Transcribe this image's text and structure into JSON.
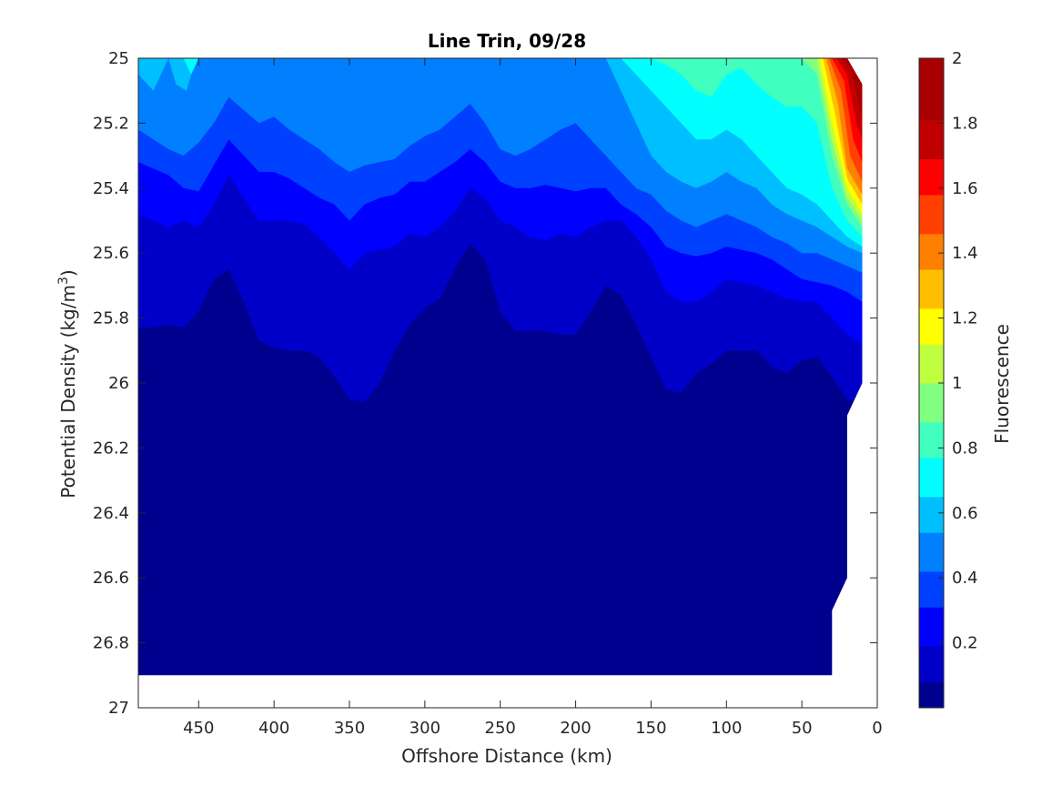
{
  "chart_data": {
    "type": "filled-contour",
    "title": "Line Trin, 09/28",
    "xlabel": "Offshore Distance (km)",
    "ylabel_main": "Potential Density (kg/m",
    "ylabel_sup": "3",
    "ylabel_close": ")",
    "colorbar_label": "Fluorescence",
    "x_reversed": true,
    "y_reversed": true,
    "xlim": [
      0,
      490
    ],
    "ylim": [
      25,
      27
    ],
    "xticks": [
      450,
      400,
      350,
      300,
      250,
      200,
      150,
      100,
      50,
      0
    ],
    "yticks": [
      25,
      25.2,
      25.4,
      25.6,
      25.8,
      26,
      26.2,
      26.4,
      26.6,
      26.8,
      27
    ],
    "colorbar_range": [
      0,
      2
    ],
    "colorbar_ticks": [
      0.2,
      0.4,
      0.6,
      0.8,
      1,
      1.2,
      1.4,
      1.6,
      1.8,
      2
    ],
    "colorbar_tick_labels": [
      "0.2",
      "0.4",
      "0.6",
      "0.8",
      "1",
      "1.2",
      "1.4",
      "1.6",
      "1.8",
      "2"
    ],
    "colormap": [
      "#00008f",
      "#0000c8",
      "#0000ff",
      "#0040ff",
      "#0080ff",
      "#00bfff",
      "#00ffff",
      "#40ffbf",
      "#80ff80",
      "#bfff40",
      "#ffff00",
      "#ffbf00",
      "#ff8000",
      "#ff4000",
      "#ff0000",
      "#c00000",
      "#a80000"
    ],
    "colorbar_levels": [
      0,
      0.08,
      0.19,
      0.31,
      0.42,
      0.54,
      0.65,
      0.77,
      0.88,
      1.0,
      1.12,
      1.23,
      1.35,
      1.46,
      1.58,
      1.69,
      1.81,
      2.0
    ],
    "layers": [
      {
        "level": 0.08,
        "x": [
          490,
          480,
          470,
          460,
          450,
          440,
          430,
          420,
          410,
          400,
          390,
          380,
          370,
          360,
          350,
          340,
          330,
          320,
          310,
          300,
          290,
          280,
          270,
          260,
          250,
          240,
          230,
          220,
          210,
          200,
          190,
          180,
          170,
          160,
          150,
          140,
          130,
          120,
          110,
          100,
          90,
          80,
          70,
          60,
          50,
          40,
          30,
          20,
          10
        ],
        "y": [
          25.83,
          25.83,
          25.82,
          25.83,
          25.78,
          25.68,
          25.65,
          25.75,
          25.87,
          25.89,
          25.9,
          25.9,
          25.92,
          25.98,
          26.05,
          26.06,
          26.0,
          25.9,
          25.82,
          25.77,
          25.74,
          25.65,
          25.57,
          25.62,
          25.78,
          25.84,
          25.84,
          25.84,
          25.85,
          25.85,
          25.78,
          25.7,
          25.73,
          25.82,
          25.92,
          26.02,
          26.03,
          25.97,
          25.94,
          25.9,
          25.9,
          25.9,
          25.95,
          25.97,
          25.93,
          25.92,
          25.98,
          26.05,
          26.05
        ]
      },
      {
        "level": 0.19,
        "x": [
          490,
          480,
          470,
          460,
          450,
          440,
          430,
          420,
          410,
          400,
          390,
          380,
          370,
          360,
          350,
          340,
          330,
          320,
          310,
          300,
          290,
          280,
          270,
          260,
          250,
          240,
          230,
          220,
          210,
          200,
          190,
          180,
          170,
          160,
          150,
          140,
          130,
          120,
          110,
          100,
          90,
          80,
          70,
          60,
          50,
          40,
          30,
          20,
          10
        ],
        "y": [
          25.48,
          25.5,
          25.52,
          25.5,
          25.52,
          25.45,
          25.36,
          25.43,
          25.5,
          25.5,
          25.5,
          25.51,
          25.55,
          25.6,
          25.65,
          25.6,
          25.59,
          25.58,
          25.54,
          25.55,
          25.52,
          25.47,
          25.4,
          25.43,
          25.5,
          25.52,
          25.55,
          25.56,
          25.54,
          25.55,
          25.52,
          25.5,
          25.5,
          25.55,
          25.62,
          25.72,
          25.75,
          25.75,
          25.72,
          25.68,
          25.69,
          25.7,
          25.72,
          25.74,
          25.75,
          25.75,
          25.8,
          25.85,
          25.88
        ]
      },
      {
        "level": 0.31,
        "x": [
          490,
          480,
          470,
          460,
          450,
          440,
          430,
          420,
          410,
          400,
          390,
          380,
          370,
          360,
          350,
          340,
          330,
          320,
          310,
          300,
          290,
          280,
          270,
          260,
          250,
          240,
          230,
          220,
          210,
          200,
          190,
          180,
          170,
          160,
          150,
          140,
          130,
          120,
          110,
          100,
          90,
          80,
          70,
          60,
          50,
          40,
          30,
          20,
          10
        ],
        "y": [
          25.32,
          25.34,
          25.36,
          25.4,
          25.41,
          25.33,
          25.25,
          25.3,
          25.35,
          25.35,
          25.37,
          25.4,
          25.43,
          25.45,
          25.5,
          25.45,
          25.43,
          25.42,
          25.38,
          25.38,
          25.35,
          25.32,
          25.28,
          25.32,
          25.38,
          25.4,
          25.4,
          25.39,
          25.4,
          25.41,
          25.4,
          25.4,
          25.45,
          25.48,
          25.52,
          25.58,
          25.6,
          25.61,
          25.6,
          25.58,
          25.59,
          25.6,
          25.62,
          25.65,
          25.68,
          25.69,
          25.7,
          25.72,
          25.75
        ]
      },
      {
        "level": 0.42,
        "x": [
          490,
          480,
          470,
          460,
          450,
          440,
          430,
          420,
          410,
          400,
          390,
          380,
          370,
          360,
          350,
          340,
          330,
          320,
          310,
          300,
          290,
          280,
          270,
          260,
          250,
          240,
          230,
          220,
          210,
          200,
          190,
          180,
          170,
          160,
          150,
          140,
          130,
          120,
          110,
          100,
          90,
          80,
          70,
          60,
          50,
          40,
          30,
          20,
          10
        ],
        "y": [
          25.22,
          25.25,
          25.28,
          25.3,
          25.26,
          25.2,
          25.12,
          25.16,
          25.2,
          25.18,
          25.22,
          25.25,
          25.28,
          25.32,
          25.35,
          25.33,
          25.32,
          25.31,
          25.27,
          25.24,
          25.22,
          25.18,
          25.14,
          25.2,
          25.28,
          25.3,
          25.28,
          25.25,
          25.22,
          25.2,
          25.25,
          25.3,
          25.35,
          25.4,
          25.42,
          25.47,
          25.5,
          25.52,
          25.5,
          25.48,
          25.5,
          25.52,
          25.55,
          25.57,
          25.6,
          25.6,
          25.62,
          25.64,
          25.66
        ]
      },
      {
        "level": 0.54,
        "x": [
          490,
          480,
          470,
          460,
          450,
          440,
          430,
          420,
          410,
          400,
          390,
          380,
          370,
          360,
          350,
          340,
          330,
          320,
          310,
          300,
          290,
          280,
          270,
          260,
          250,
          240,
          230,
          220,
          210,
          200,
          190,
          180,
          170,
          160,
          150,
          140,
          130,
          120,
          110,
          100,
          90,
          80,
          70,
          60,
          50,
          40,
          30,
          20,
          10
        ],
        "y": [
          25.05,
          25.1,
          25.0,
          25.0,
          25.0,
          25.0,
          25.0,
          25.0,
          25.0,
          25.0,
          25.0,
          25.0,
          25.0,
          25.0,
          25.0,
          25.0,
          25.0,
          25.0,
          25.0,
          25.0,
          25.0,
          25.0,
          25.0,
          25.0,
          25.0,
          25.0,
          25.0,
          25.0,
          25.0,
          25.0,
          25.0,
          25.0,
          25.1,
          25.2,
          25.3,
          25.35,
          25.38,
          25.4,
          25.38,
          25.35,
          25.38,
          25.4,
          25.45,
          25.48,
          25.5,
          25.52,
          25.55,
          25.58,
          25.6
        ]
      },
      {
        "level": 0.65,
        "x": [
          490,
          480,
          470,
          460,
          450,
          440,
          430,
          420,
          410,
          400,
          390,
          380,
          370,
          360,
          350,
          340,
          330,
          320,
          310,
          300,
          290,
          280,
          270,
          260,
          250,
          240,
          230,
          220,
          210,
          200,
          190,
          180,
          170,
          160,
          150,
          140,
          130,
          120,
          110,
          100,
          90,
          80,
          70,
          60,
          50,
          40,
          30,
          20,
          10
        ],
        "y": [
          25,
          25,
          25,
          25,
          25,
          25,
          25,
          25,
          25,
          25,
          25,
          25,
          25,
          25,
          25,
          25,
          25,
          25,
          25,
          25,
          25,
          25,
          25,
          25,
          25,
          25,
          25,
          25,
          25,
          25,
          25,
          25,
          25,
          25.05,
          25.1,
          25.15,
          25.2,
          25.25,
          25.25,
          25.22,
          25.25,
          25.3,
          25.35,
          25.4,
          25.42,
          25.45,
          25.5,
          25.55,
          25.58
        ]
      },
      {
        "level": 0.77,
        "x": [
          490,
          480,
          470,
          460,
          450,
          440,
          430,
          420,
          410,
          400,
          390,
          380,
          370,
          360,
          350,
          340,
          330,
          320,
          310,
          300,
          290,
          280,
          270,
          260,
          250,
          240,
          230,
          220,
          210,
          200,
          190,
          180,
          170,
          160,
          150,
          140,
          130,
          120,
          110,
          100,
          90,
          80,
          70,
          60,
          50,
          40,
          30,
          20,
          10
        ],
        "y": [
          25,
          25,
          25,
          25,
          25,
          25,
          25,
          25,
          25,
          25,
          25,
          25,
          25,
          25,
          25,
          25,
          25,
          25,
          25,
          25,
          25,
          25,
          25,
          25,
          25,
          25,
          25,
          25,
          25,
          25,
          25,
          25,
          25,
          25,
          25,
          25.02,
          25.05,
          25.1,
          25.12,
          25.05,
          25.03,
          25.08,
          25.12,
          25.15,
          25.15,
          25.2,
          25.4,
          25.5,
          25.55
        ]
      },
      {
        "level": 0.88,
        "x": [
          490,
          480,
          470,
          460,
          450,
          440,
          430,
          420,
          410,
          400,
          390,
          380,
          370,
          360,
          350,
          340,
          330,
          320,
          310,
          300,
          290,
          280,
          270,
          260,
          250,
          240,
          230,
          220,
          210,
          200,
          190,
          180,
          170,
          160,
          150,
          140,
          130,
          120,
          110,
          100,
          90,
          80,
          70,
          60,
          50,
          40,
          30,
          20,
          10
        ],
        "y": [
          25,
          25,
          25,
          25,
          25,
          25,
          25,
          25,
          25,
          25,
          25,
          25,
          25,
          25,
          25,
          25,
          25,
          25,
          25,
          25,
          25,
          25,
          25,
          25,
          25,
          25,
          25,
          25,
          25,
          25,
          25,
          25,
          25,
          25,
          25,
          25,
          25,
          25,
          25,
          25,
          25,
          25,
          25,
          25,
          25,
          25.05,
          25.3,
          25.45,
          25.52
        ]
      },
      {
        "level": 1.0,
        "x": [
          40,
          30,
          20,
          10
        ],
        "y": [
          25,
          25.25,
          25.43,
          25.5
        ]
      },
      {
        "level": 1.12,
        "x": [
          38,
          30,
          20,
          10
        ],
        "y": [
          25,
          25.2,
          25.4,
          25.48
        ]
      },
      {
        "level": 1.23,
        "x": [
          36,
          28,
          20,
          10
        ],
        "y": [
          25,
          25.17,
          25.37,
          25.45
        ]
      },
      {
        "level": 1.35,
        "x": [
          34,
          26,
          20,
          10
        ],
        "y": [
          25,
          25.14,
          25.34,
          25.42
        ]
      },
      {
        "level": 1.46,
        "x": [
          32,
          24,
          18,
          10
        ],
        "y": [
          25,
          25.1,
          25.3,
          25.38
        ]
      },
      {
        "level": 1.58,
        "x": [
          30,
          22,
          16,
          10
        ],
        "y": [
          25,
          25.07,
          25.25,
          25.32
        ]
      },
      {
        "level": 1.69,
        "x": [
          27,
          20,
          14,
          10
        ],
        "y": [
          25,
          25.05,
          25.2,
          25.25
        ]
      },
      {
        "level": 1.81,
        "x": [
          24,
          18,
          12,
          10
        ],
        "y": [
          25,
          25.03,
          25.14,
          25.18
        ]
      }
    ],
    "surface_patches": [
      {
        "level": 0.54,
        "x": [
          470,
          465,
          458,
          452
        ],
        "y": [
          25,
          25.08,
          25.1,
          25
        ]
      },
      {
        "level": 0.65,
        "x": [
          460,
          455,
          450
        ],
        "y": [
          25,
          25.05,
          25
        ]
      }
    ],
    "data_boundary": {
      "x": [
        490,
        490,
        30,
        30,
        20,
        20,
        10,
        10,
        20
      ],
      "y": [
        25,
        26.9,
        26.9,
        26.7,
        26.6,
        26.1,
        26.0,
        25.08,
        25.0
      ]
    }
  }
}
